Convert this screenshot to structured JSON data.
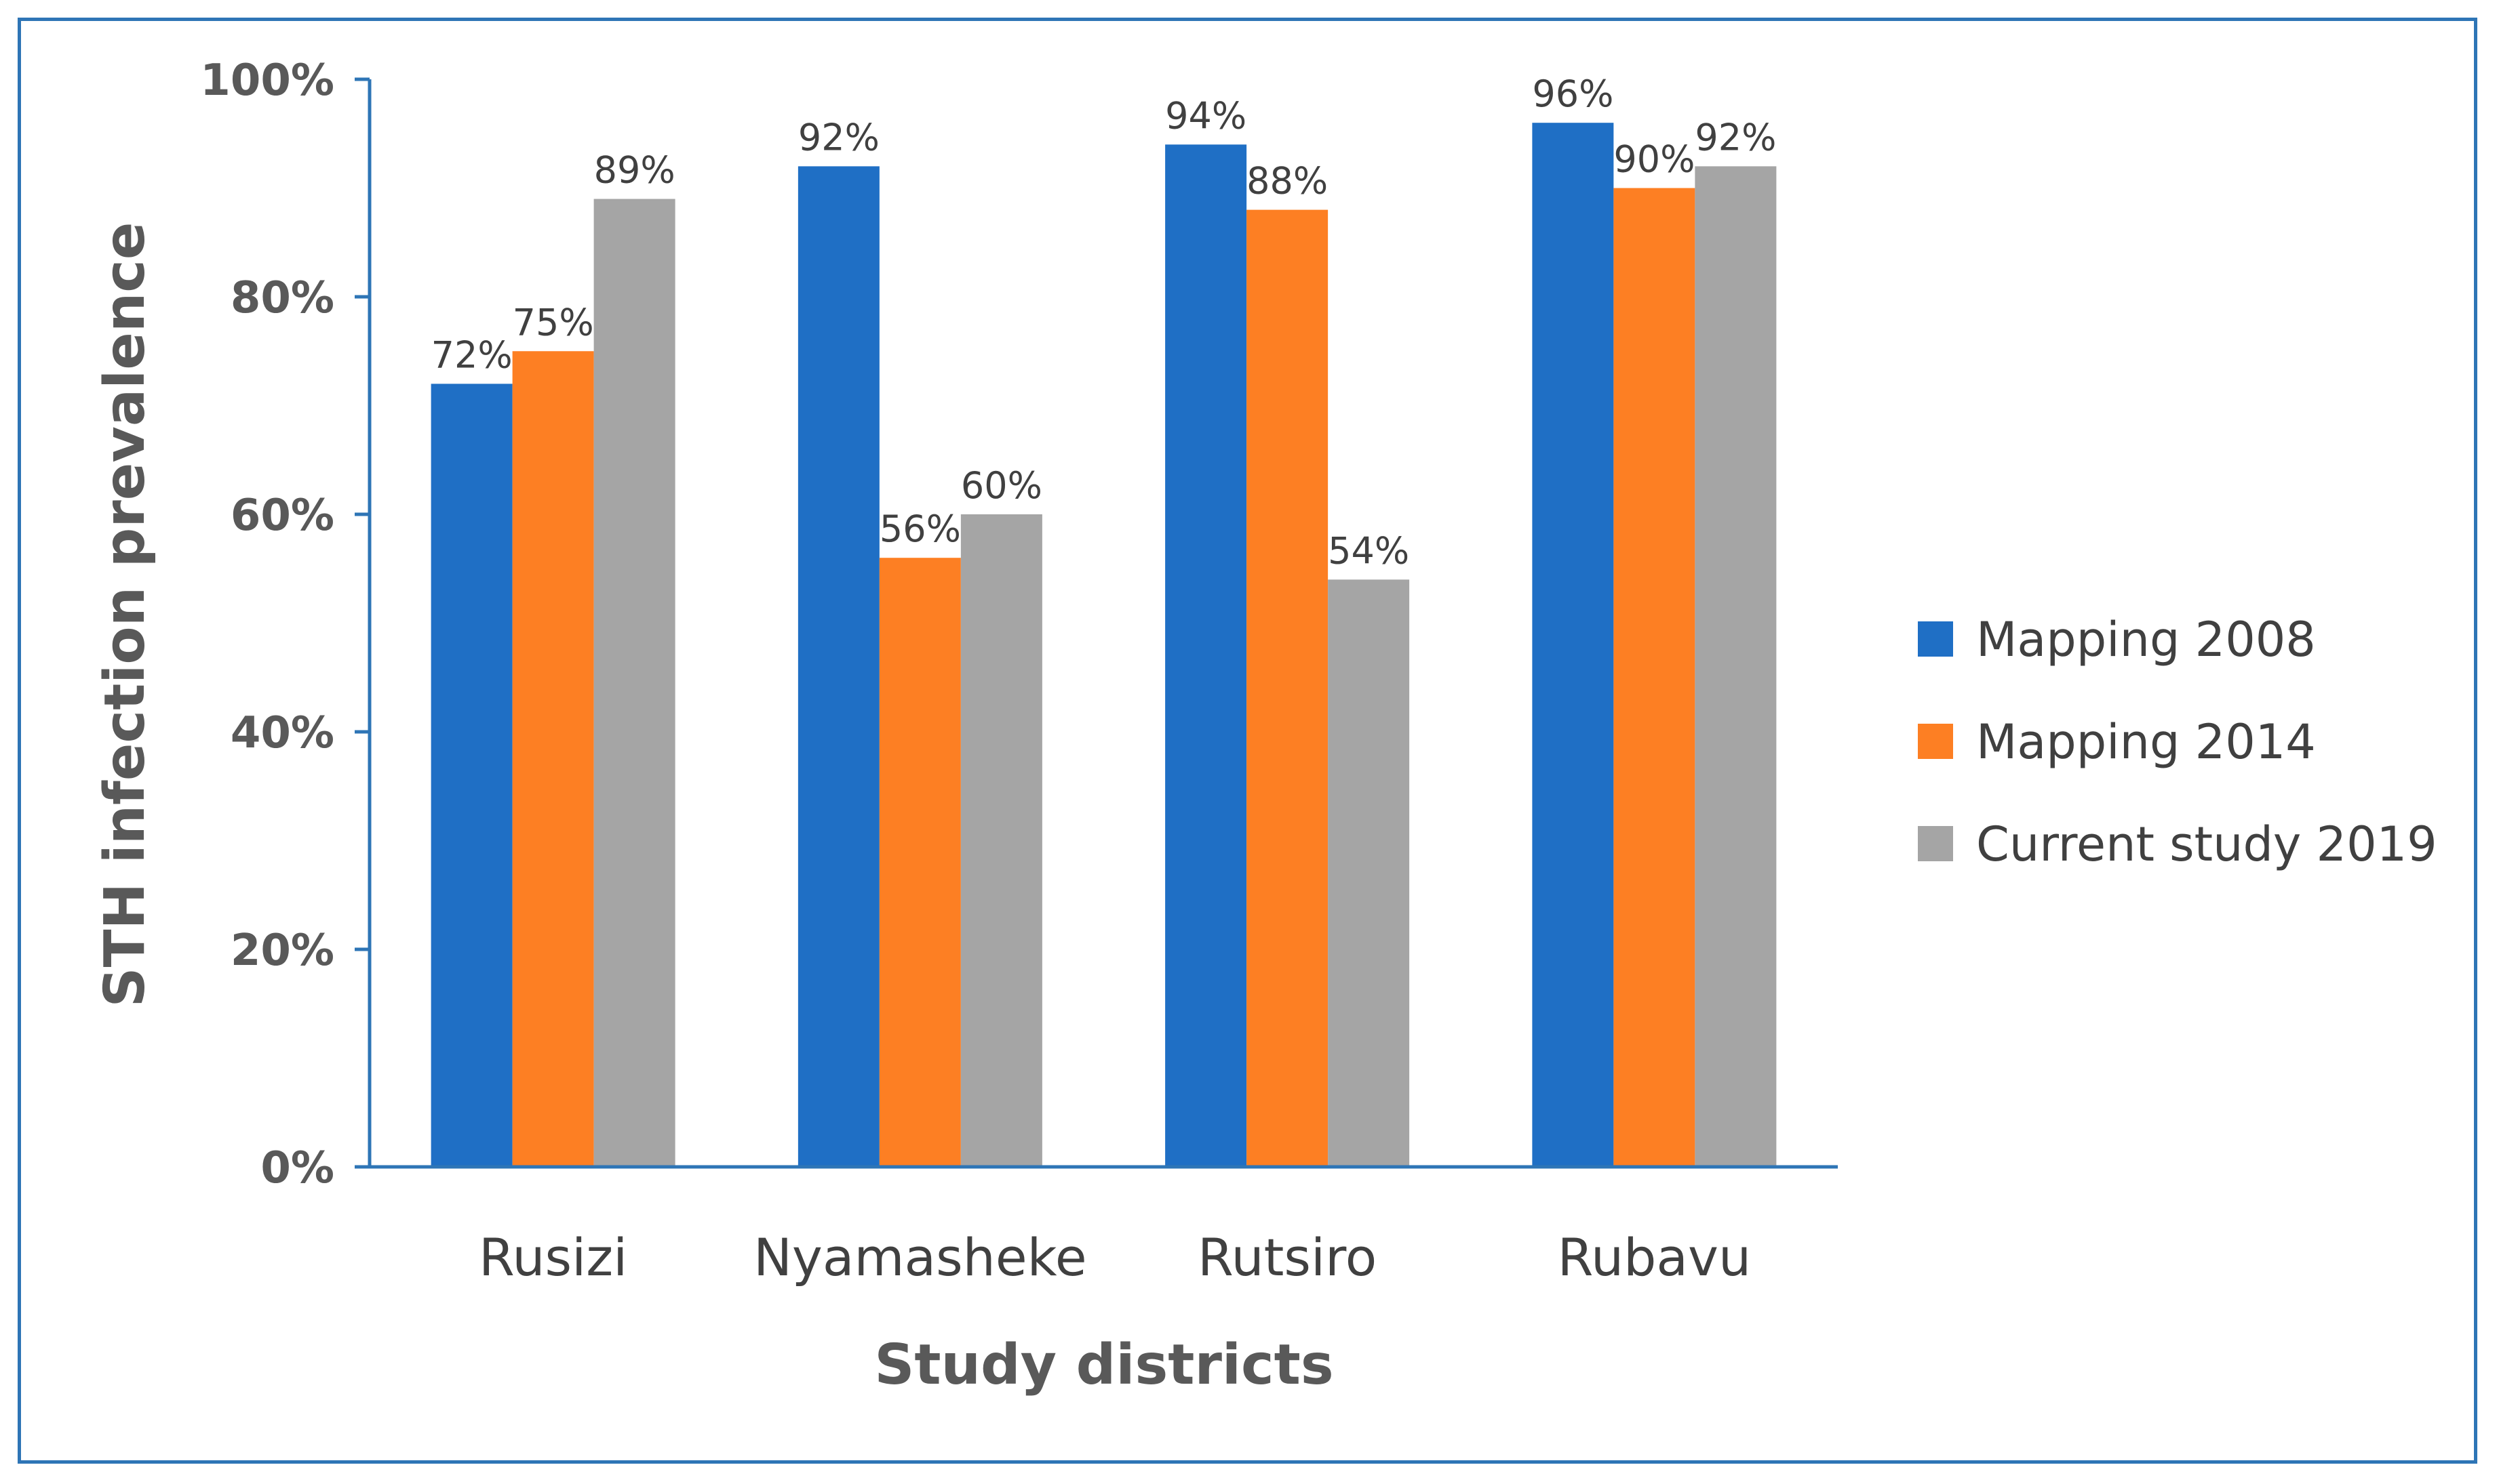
{
  "chart_data": {
    "type": "bar",
    "title": "",
    "xlabel": "Study districts",
    "ylabel": "STH infection prevalence",
    "categories": [
      "Rusizi",
      "Nyamasheke",
      "Rutsiro",
      "Rubavu"
    ],
    "series": [
      {
        "name": "Mapping 2008",
        "color": "#1f6fc5",
        "values": [
          72,
          92,
          94,
          96
        ],
        "labels": [
          "72%",
          "92%",
          "94%",
          "96%"
        ]
      },
      {
        "name": "Mapping 2014",
        "color": "#fd7f23",
        "values": [
          75,
          56,
          88,
          90
        ],
        "labels": [
          "75%",
          "56%",
          "88%",
          "90%"
        ]
      },
      {
        "name": "Current study 2019",
        "color": "#a5a5a5",
        "values": [
          89,
          60,
          54,
          92
        ],
        "labels": [
          "89%",
          "60%",
          "54%",
          "92%"
        ]
      }
    ],
    "ylim": [
      0,
      100
    ],
    "yticks": [
      0,
      20,
      40,
      60,
      80,
      100
    ],
    "ytick_labels": [
      "0%",
      "20%",
      "40%",
      "60%",
      "80%",
      "100%"
    ],
    "grid": false,
    "legend_position": "right",
    "frame_color": "#2e75b6",
    "axis_color": "#2e75b6"
  }
}
